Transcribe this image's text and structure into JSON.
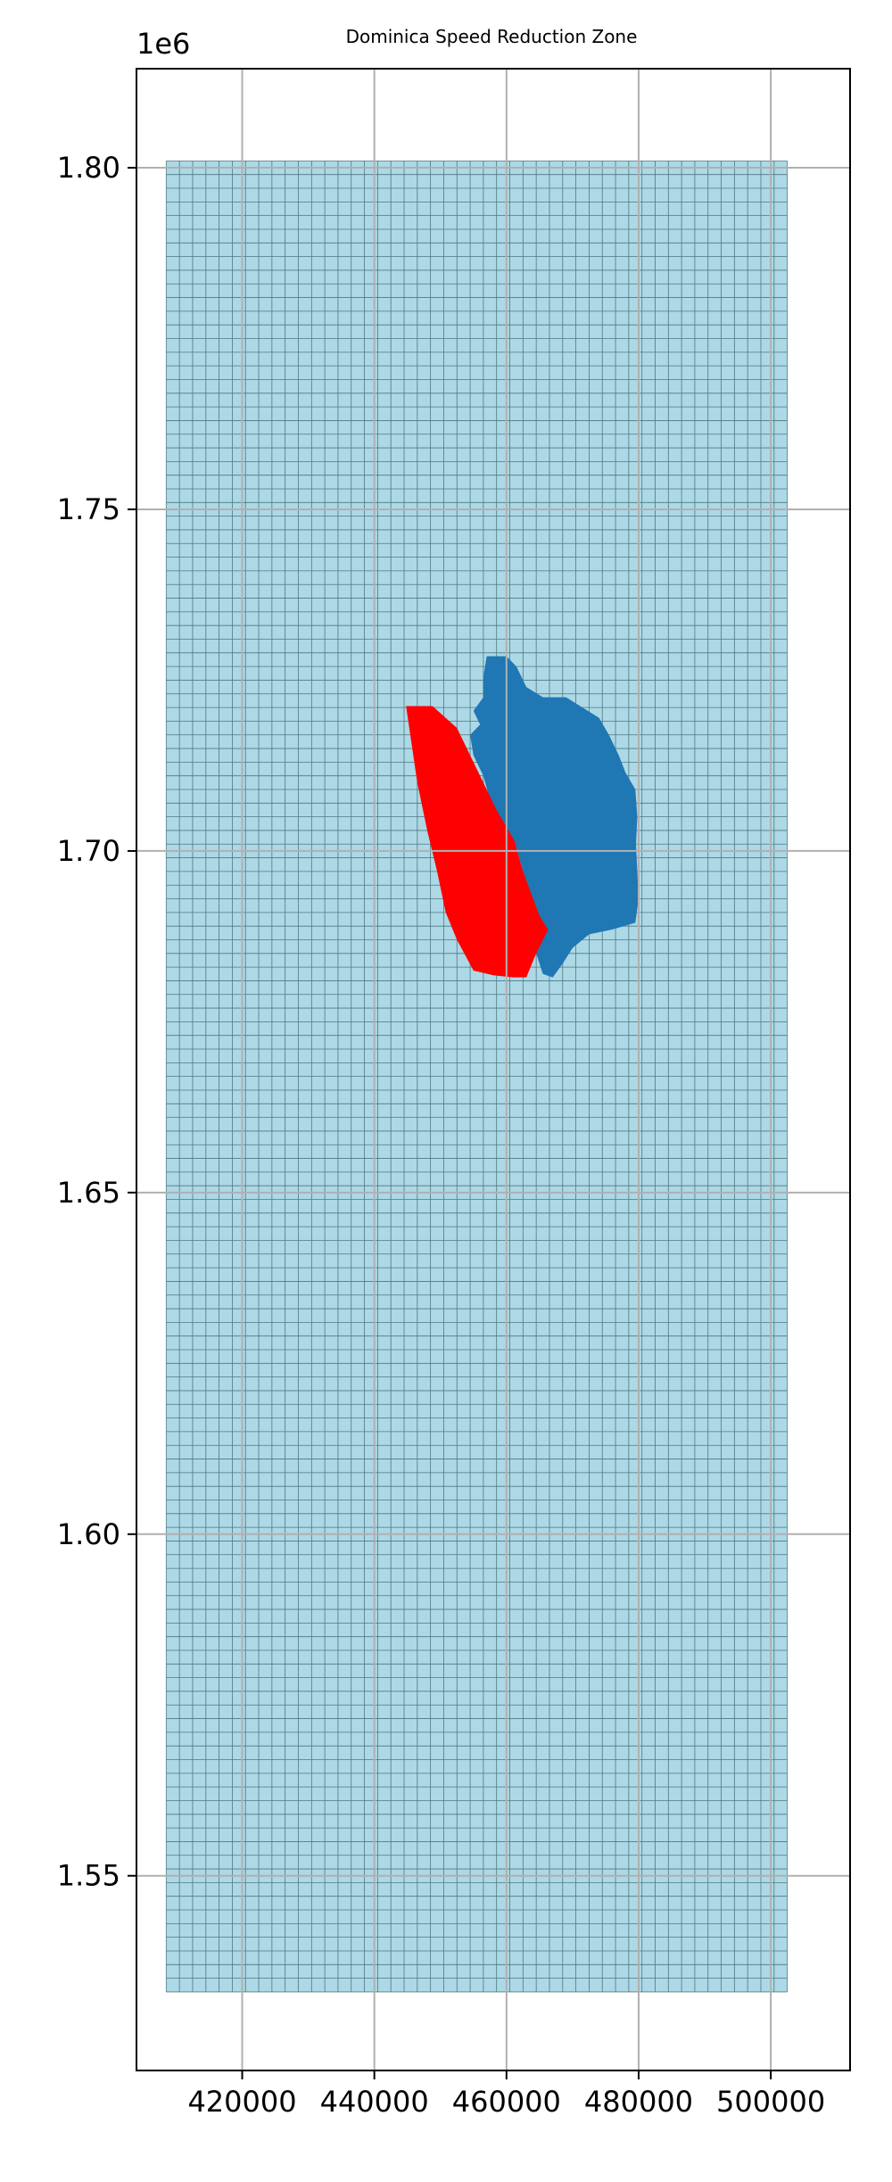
{
  "chart_data": {
    "type": "map",
    "title": "Dominica Speed Reduction Zone",
    "xlabel": "",
    "ylabel": "",
    "y_offset_label": "1e6",
    "xlim": [
      404000,
      512000
    ],
    "ylim": [
      1521500,
      1814500
    ],
    "x_ticks": [
      420000,
      440000,
      460000,
      480000,
      500000
    ],
    "x_tick_labels": [
      "420000",
      "440000",
      "460000",
      "480000",
      "500000"
    ],
    "y_ticks": [
      1.55,
      1.6,
      1.65,
      1.7,
      1.75,
      1.8
    ],
    "y_tick_labels": [
      "1.55",
      "1.60",
      "1.65",
      "1.70",
      "1.75",
      "1.80"
    ],
    "grid": true,
    "colors": {
      "ocean_grid": "#add8e6",
      "grid_cell_lines": "#2f5a5e",
      "island": "#1f77b4",
      "speed_zone": "#ff0000",
      "axis_grid": "#b0b0b0"
    },
    "ocean_grid": {
      "x_range": [
        408500,
        502500
      ],
      "y_range": [
        1533000,
        1801000
      ],
      "cell_size": 2000
    },
    "island_polygon": [
      [
        457000,
        1728500
      ],
      [
        460000,
        1728500
      ],
      [
        461500,
        1727000
      ],
      [
        463000,
        1724000
      ],
      [
        465500,
        1722500
      ],
      [
        469000,
        1722500
      ],
      [
        471500,
        1721000
      ],
      [
        474000,
        1719500
      ],
      [
        475500,
        1717000
      ],
      [
        477000,
        1714000
      ],
      [
        478000,
        1711500
      ],
      [
        479500,
        1709000
      ],
      [
        479800,
        1705000
      ],
      [
        479600,
        1701000
      ],
      [
        479800,
        1697000
      ],
      [
        480000,
        1693000
      ],
      [
        479500,
        1689500
      ],
      [
        476000,
        1688500
      ],
      [
        472500,
        1687800
      ],
      [
        470000,
        1685800
      ],
      [
        468500,
        1683500
      ],
      [
        467000,
        1681500
      ],
      [
        465500,
        1682000
      ],
      [
        464500,
        1685000
      ],
      [
        463500,
        1689000
      ],
      [
        463000,
        1693000
      ],
      [
        462500,
        1697000
      ],
      [
        461500,
        1700500
      ],
      [
        459500,
        1702000
      ],
      [
        458500,
        1704500
      ],
      [
        457500,
        1707500
      ],
      [
        456500,
        1711000
      ],
      [
        455000,
        1714000
      ],
      [
        454500,
        1717000
      ],
      [
        456000,
        1718500
      ],
      [
        455000,
        1720500
      ],
      [
        456500,
        1722500
      ],
      [
        456500,
        1725500
      ]
    ],
    "speed_zone_polygon": [
      [
        444800,
        1721200
      ],
      [
        448800,
        1721200
      ],
      [
        452500,
        1718000
      ],
      [
        455500,
        1712000
      ],
      [
        458500,
        1706000
      ],
      [
        461200,
        1701500
      ],
      [
        462500,
        1697000
      ],
      [
        465000,
        1690500
      ],
      [
        466300,
        1688500
      ],
      [
        464500,
        1685000
      ],
      [
        463000,
        1681500
      ],
      [
        461000,
        1681500
      ],
      [
        458000,
        1681800
      ],
      [
        455000,
        1682500
      ],
      [
        452500,
        1687000
      ],
      [
        450800,
        1691000
      ],
      [
        449500,
        1697000
      ],
      [
        448000,
        1703000
      ],
      [
        446500,
        1710000
      ]
    ]
  }
}
